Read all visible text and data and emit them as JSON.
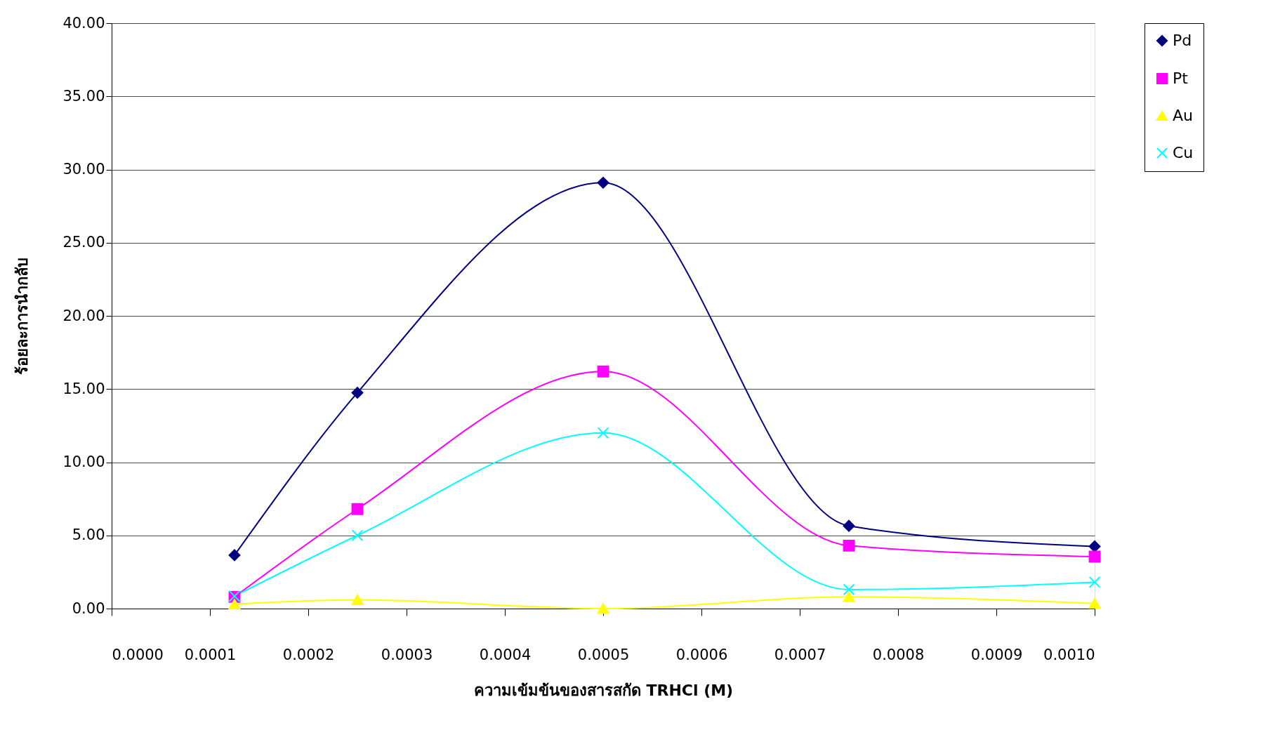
{
  "chart_data": {
    "type": "line",
    "xlabel": "ความเข้มข้นของสารสกัด TRHCl (M)",
    "ylabel": "ร้อยละการนำกลับ",
    "x": [
      0.000125,
      0.00025,
      0.0005,
      0.00075,
      0.001
    ],
    "series": [
      {
        "name": "Pd",
        "color": "#000080",
        "marker": "diamond",
        "values": [
          3.65,
          14.75,
          29.1,
          5.65,
          4.25
        ]
      },
      {
        "name": "Pt",
        "color": "#ff00ff",
        "marker": "square",
        "values": [
          0.8,
          6.8,
          16.2,
          4.3,
          3.55
        ]
      },
      {
        "name": "Au",
        "color": "#ffff00",
        "marker": "triangle",
        "values": [
          0.3,
          0.6,
          0.0,
          0.8,
          0.35
        ]
      },
      {
        "name": "Cu",
        "color": "#00ffff",
        "marker": "cross",
        "values": [
          0.85,
          5.0,
          12.0,
          1.3,
          1.8
        ]
      }
    ],
    "xlim": [
      0,
      0.001
    ],
    "ylim": [
      0,
      40
    ],
    "xticks": [
      {
        "value": 0,
        "label": "0.0000"
      },
      {
        "value": 0.0001,
        "label": "0.0001"
      },
      {
        "value": 0.0002,
        "label": "0.0002"
      },
      {
        "value": 0.0003,
        "label": "0.0003"
      },
      {
        "value": 0.0004,
        "label": "0.0004"
      },
      {
        "value": 0.0005,
        "label": "0.0005"
      },
      {
        "value": 0.0006,
        "label": "0.0006"
      },
      {
        "value": 0.0007,
        "label": "0.0007"
      },
      {
        "value": 0.0008,
        "label": "0.0008"
      },
      {
        "value": 0.0009,
        "label": "0.0009"
      },
      {
        "value": 0.001,
        "label": "0.0010"
      }
    ],
    "yticks": [
      {
        "value": 0,
        "label": "0.00"
      },
      {
        "value": 5,
        "label": "5.00"
      },
      {
        "value": 10,
        "label": "10.00"
      },
      {
        "value": 15,
        "label": "15.00"
      },
      {
        "value": 20,
        "label": "20.00"
      },
      {
        "value": 25,
        "label": "25.00"
      },
      {
        "value": 30,
        "label": "30.00"
      },
      {
        "value": 35,
        "label": "35.00"
      },
      {
        "value": 40,
        "label": "40.00"
      }
    ],
    "grid": "y",
    "legend": "right",
    "line_style": "solid"
  }
}
